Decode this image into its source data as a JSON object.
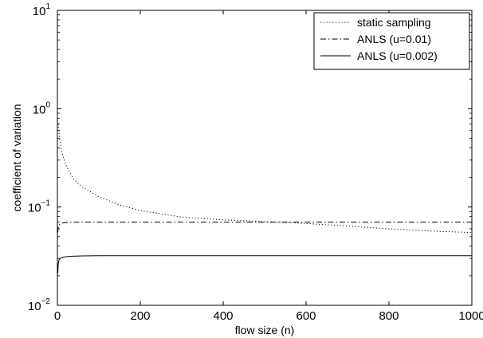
{
  "chart_data": {
    "type": "line",
    "title": "",
    "xlabel": "flow size (n)",
    "ylabel": "coefficient of variation",
    "xlim": [
      0,
      1000
    ],
    "ylim": [
      0.01,
      10
    ],
    "yscale": "log",
    "grid": false,
    "legend_position": "top-right",
    "x_ticks": [
      0,
      200,
      400,
      600,
      800,
      1000
    ],
    "x_tick_labels": [
      "0",
      "200",
      "400",
      "600",
      "800",
      "1000"
    ],
    "y_ticks": [
      {
        "value": 0.01,
        "base": "10",
        "exp": "−2"
      },
      {
        "value": 0.1,
        "base": "10",
        "exp": "−1"
      },
      {
        "value": 1,
        "base": "10",
        "exp": "0"
      },
      {
        "value": 10,
        "base": "10",
        "exp": "1"
      }
    ],
    "series": [
      {
        "name": "static sampling",
        "style": "dotted",
        "x": [
          2,
          5,
          10,
          20,
          40,
          60,
          100,
          150,
          200,
          300,
          400,
          500,
          600,
          700,
          800,
          900,
          1000
        ],
        "y": [
          0.7,
          0.5,
          0.37,
          0.27,
          0.19,
          0.16,
          0.127,
          0.105,
          0.092,
          0.079,
          0.074,
          0.071,
          0.068,
          0.064,
          0.06,
          0.057,
          0.055
        ]
      },
      {
        "name": "ANLS (u=0.01)",
        "style": "dashdot",
        "x": [
          1,
          2,
          4,
          8,
          15,
          30,
          60,
          100,
          200,
          400,
          600,
          800,
          1000
        ],
        "y": [
          0.055,
          0.062,
          0.066,
          0.068,
          0.069,
          0.07,
          0.07,
          0.07,
          0.07,
          0.07,
          0.07,
          0.07,
          0.07
        ]
      },
      {
        "name": "ANLS (u=0.002)",
        "style": "solid",
        "x": [
          1,
          2,
          4,
          8,
          15,
          30,
          60,
          100,
          200,
          400,
          600,
          800,
          1000
        ],
        "y": [
          0.021,
          0.026,
          0.029,
          0.0303,
          0.031,
          0.0315,
          0.0318,
          0.032,
          0.032,
          0.032,
          0.032,
          0.032,
          0.032
        ]
      }
    ]
  }
}
